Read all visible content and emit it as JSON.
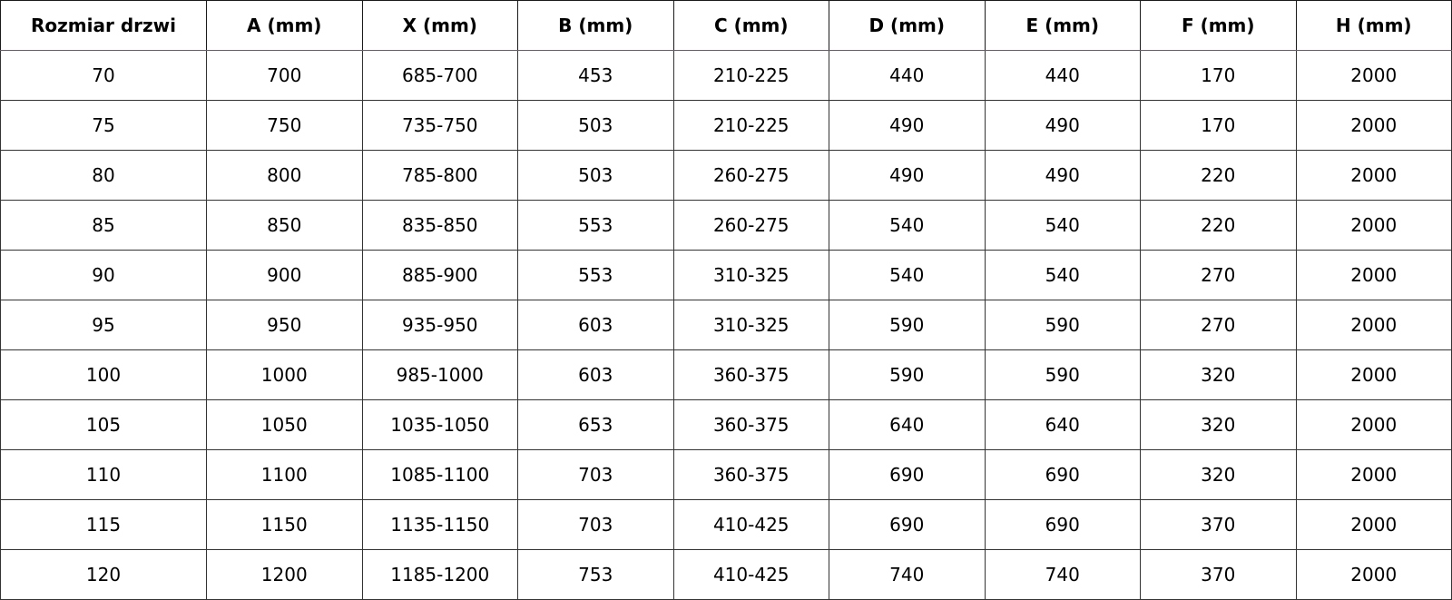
{
  "table": {
    "headers": [
      "Rozmiar drzwi",
      "A (mm)",
      "X (mm)",
      "B (mm)",
      "C (mm)",
      "D (mm)",
      "E (mm)",
      "F (mm)",
      "H (mm)"
    ],
    "rows": [
      [
        "70",
        "700",
        "685-700",
        "453",
        "210-225",
        "440",
        "440",
        "170",
        "2000"
      ],
      [
        "75",
        "750",
        "735-750",
        "503",
        "210-225",
        "490",
        "490",
        "170",
        "2000"
      ],
      [
        "80",
        "800",
        "785-800",
        "503",
        "260-275",
        "490",
        "490",
        "220",
        "2000"
      ],
      [
        "85",
        "850",
        "835-850",
        "553",
        "260-275",
        "540",
        "540",
        "220",
        "2000"
      ],
      [
        "90",
        "900",
        "885-900",
        "553",
        "310-325",
        "540",
        "540",
        "270",
        "2000"
      ],
      [
        "95",
        "950",
        "935-950",
        "603",
        "310-325",
        "590",
        "590",
        "270",
        "2000"
      ],
      [
        "100",
        "1000",
        "985-1000",
        "603",
        "360-375",
        "590",
        "590",
        "320",
        "2000"
      ],
      [
        "105",
        "1050",
        "1035-1050",
        "653",
        "360-375",
        "640",
        "640",
        "320",
        "2000"
      ],
      [
        "110",
        "1100",
        "1085-1100",
        "703",
        "360-375",
        "690",
        "690",
        "320",
        "2000"
      ],
      [
        "115",
        "1150",
        "1135-1150",
        "703",
        "410-425",
        "690",
        "690",
        "370",
        "2000"
      ],
      [
        "120",
        "1200",
        "1185-1200",
        "753",
        "410-425",
        "740",
        "740",
        "370",
        "2000"
      ]
    ]
  }
}
